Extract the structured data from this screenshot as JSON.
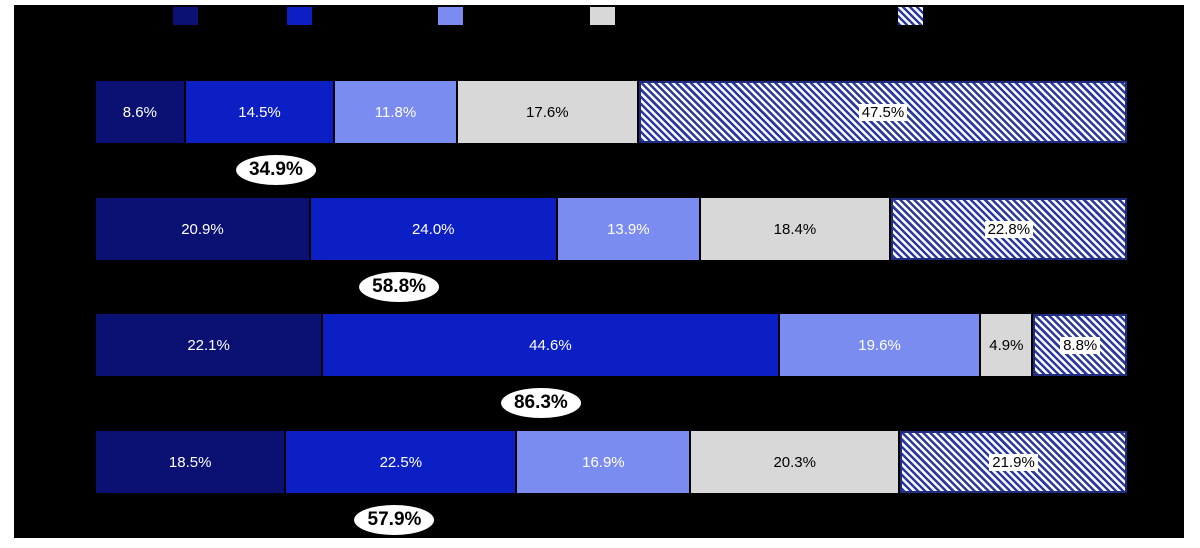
{
  "colors": {
    "page_bg": "#ffffff",
    "chart_bg": "#000000",
    "dark_navy": "#0A1172",
    "blue": "#0B1FC5",
    "light_blue": "#7B8CF0",
    "gray": "#D8D8D8",
    "hatch_stripe": "#2B3A9E",
    "hatch_bg": "#ffffff",
    "hatch_border": "#1F2C80",
    "label_on_dark": "#ffffff",
    "label_on_light": "#000000"
  },
  "legend": {
    "swatches": [
      {
        "series": "dark-navy"
      },
      {
        "series": "blue"
      },
      {
        "series": "light-blue"
      },
      {
        "series": "gray"
      },
      {
        "series": "hatched"
      }
    ]
  },
  "chart_data": {
    "type": "bar",
    "orientation": "horizontal-stacked",
    "xlim": [
      0,
      100
    ],
    "units": "percent",
    "series_style": {
      "dark-navy": {
        "color": "#0A1172",
        "text": "#ffffff",
        "pattern": false
      },
      "blue": {
        "color": "#0B1FC5",
        "text": "#ffffff",
        "pattern": false
      },
      "light-blue": {
        "color": "#7B8CF0",
        "text": "#ffffff",
        "pattern": false
      },
      "gray": {
        "color": "#D8D8D8",
        "text": "#000000",
        "pattern": false
      },
      "hatched": {
        "color": "#2B3A9E",
        "text": "#000000",
        "pattern": true
      }
    },
    "rows": [
      {
        "segments": [
          {
            "series": "dark-navy",
            "value": 8.6,
            "label": "8.6%"
          },
          {
            "series": "blue",
            "value": 14.5,
            "label": "14.5%"
          },
          {
            "series": "light-blue",
            "value": 11.8,
            "label": "11.8%"
          },
          {
            "series": "gray",
            "value": 17.6,
            "label": "17.6%"
          },
          {
            "series": "hatched",
            "value": 47.5,
            "label": "47.5%"
          }
        ],
        "badge": {
          "value": 34.9,
          "label": "34.9%"
        }
      },
      {
        "segments": [
          {
            "series": "dark-navy",
            "value": 20.9,
            "label": "20.9%"
          },
          {
            "series": "blue",
            "value": 24.0,
            "label": "24.0%"
          },
          {
            "series": "light-blue",
            "value": 13.9,
            "label": "13.9%"
          },
          {
            "series": "gray",
            "value": 18.4,
            "label": "18.4%"
          },
          {
            "series": "hatched",
            "value": 22.8,
            "label": "22.8%"
          }
        ],
        "badge": {
          "value": 58.8,
          "label": "58.8%"
        }
      },
      {
        "segments": [
          {
            "series": "dark-navy",
            "value": 22.1,
            "label": "22.1%"
          },
          {
            "series": "blue",
            "value": 44.6,
            "label": "44.6%"
          },
          {
            "series": "light-blue",
            "value": 19.6,
            "label": "19.6%"
          },
          {
            "series": "gray",
            "value": 4.9,
            "label": "4.9%"
          },
          {
            "series": "hatched",
            "value": 8.8,
            "label": "8.8%"
          }
        ],
        "badge": {
          "value": 86.3,
          "label": "86.3%"
        }
      },
      {
        "segments": [
          {
            "series": "dark-navy",
            "value": 18.5,
            "label": "18.5%"
          },
          {
            "series": "blue",
            "value": 22.5,
            "label": "22.5%"
          },
          {
            "series": "light-blue",
            "value": 16.9,
            "label": "16.9%"
          },
          {
            "series": "gray",
            "value": 20.3,
            "label": "20.3%"
          },
          {
            "series": "hatched",
            "value": 21.9,
            "label": "21.9%"
          }
        ],
        "badge": {
          "value": 57.9,
          "label": "57.9%"
        }
      }
    ],
    "badge_note": "badge = sum of first three segments, centered under midpoint of that span"
  }
}
